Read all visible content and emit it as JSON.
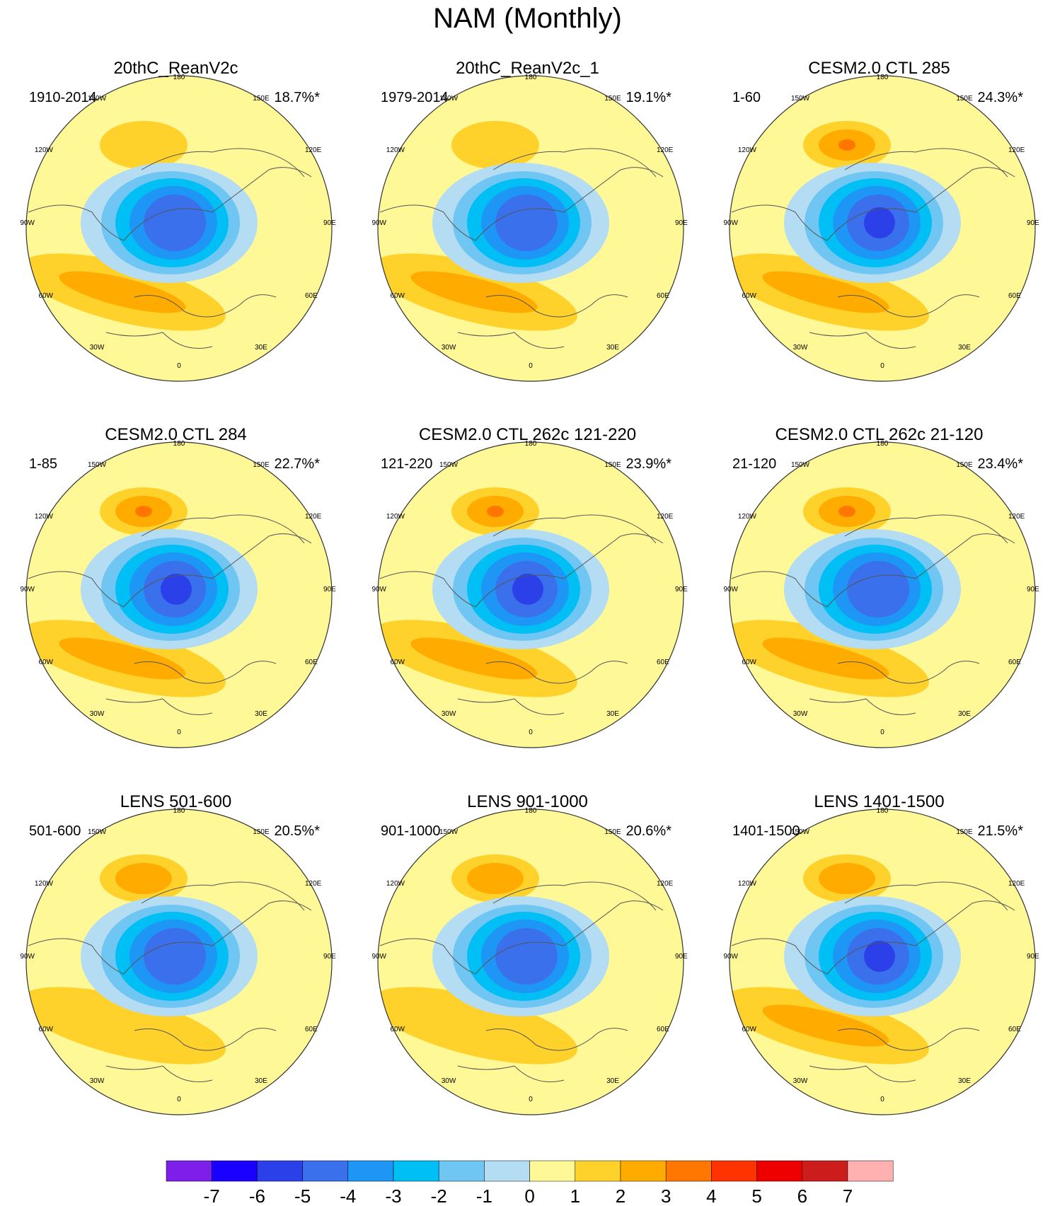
{
  "title": "NAM (Monthly)",
  "colors": {
    "land_outline": "#555555",
    "ring": "#333333",
    "levels": [
      "#7d1fe8",
      "#1a00ff",
      "#2b40e8",
      "#3a70ec",
      "#1e96f5",
      "#00bff5",
      "#70c6f2",
      "#b4ddf4",
      "#fff897",
      "#ffd22b",
      "#ffab00",
      "#ff7700",
      "#ff3300",
      "#ee0000",
      "#cc1c1c",
      "#ffb0b0"
    ]
  },
  "lon_labels": [
    "180",
    "150E",
    "120E",
    "90E",
    "60E",
    "30E",
    "0",
    "30W",
    "60W",
    "90W",
    "120W",
    "150W"
  ],
  "panels": [
    {
      "title": "20thC_ReanV2c",
      "period": "1910-2014",
      "variance": "18.7%*",
      "pac": 1,
      "atl": 2,
      "polar": -5
    },
    {
      "title": "20thC_ReanV2c_1",
      "period": "1979-2014",
      "variance": "19.1%*",
      "pac": 1,
      "atl": 2,
      "polar": -5
    },
    {
      "title": "CESM2.0 CTL 285",
      "period": "1-60",
      "variance": "24.3%*",
      "pac": 3,
      "atl": 2,
      "polar": -6
    },
    {
      "title": "CESM2.0 CTL 284",
      "period": "1-85",
      "variance": "22.7%*",
      "pac": 3,
      "atl": 2,
      "polar": -6
    },
    {
      "title": "CESM2.0 CTL 262c 121-220",
      "period": "121-220",
      "variance": "23.9%*",
      "pac": 3,
      "atl": 2,
      "polar": -6
    },
    {
      "title": "CESM2.0 CTL 262c 21-120",
      "period": "21-120",
      "variance": "23.4%*",
      "pac": 3,
      "atl": 2,
      "polar": -5
    },
    {
      "title": "LENS 501-600",
      "period": "501-600",
      "variance": "20.5%*",
      "pac": 2,
      "atl": 1,
      "polar": -5
    },
    {
      "title": "LENS 901-1000",
      "period": "901-1000",
      "variance": "20.6%*",
      "pac": 2,
      "atl": 1,
      "polar": -5
    },
    {
      "title": "LENS 1401-1500",
      "period": "1401-1500",
      "variance": "21.5%*",
      "pac": 2,
      "atl": 2,
      "polar": -6
    }
  ],
  "colorbar": {
    "labels": [
      "-7",
      "-6",
      "-5",
      "-4",
      "-3",
      "-2",
      "-1",
      "0",
      "1",
      "2",
      "3",
      "4",
      "5",
      "6",
      "7"
    ]
  }
}
